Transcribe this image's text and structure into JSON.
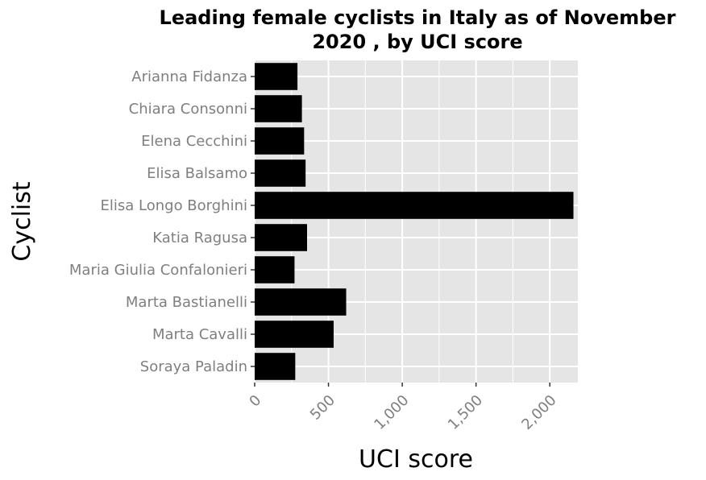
{
  "chart_data": {
    "type": "bar",
    "orientation": "horizontal",
    "title_lines": [
      "Leading female cyclists in Italy as of November",
      "2020 , by UCI score"
    ],
    "xlabel": "UCI score",
    "ylabel": "Cyclist",
    "categories": [
      "Arianna Fidanza",
      "Chiara Consonni",
      "Elena Cecchini",
      "Elisa Balsamo",
      "Elisa Longo Borghini",
      "Katia Ragusa",
      "Maria Giulia Confalonieri",
      "Marta Bastianelli",
      "Marta Cavalli",
      "Soraya Paladin"
    ],
    "values": [
      290,
      320,
      335,
      345,
      2160,
      355,
      270,
      620,
      535,
      275
    ],
    "x_ticks": [
      0,
      500,
      1000,
      1500,
      2000
    ],
    "x_tick_labels": [
      "0",
      "500",
      "1,000",
      "1,500",
      "2,000"
    ],
    "xlim": [
      0,
      2190
    ],
    "grid": true,
    "bar_color": "#000000",
    "panel_color": "#e5e5e5",
    "grid_color": "#ffffff"
  }
}
